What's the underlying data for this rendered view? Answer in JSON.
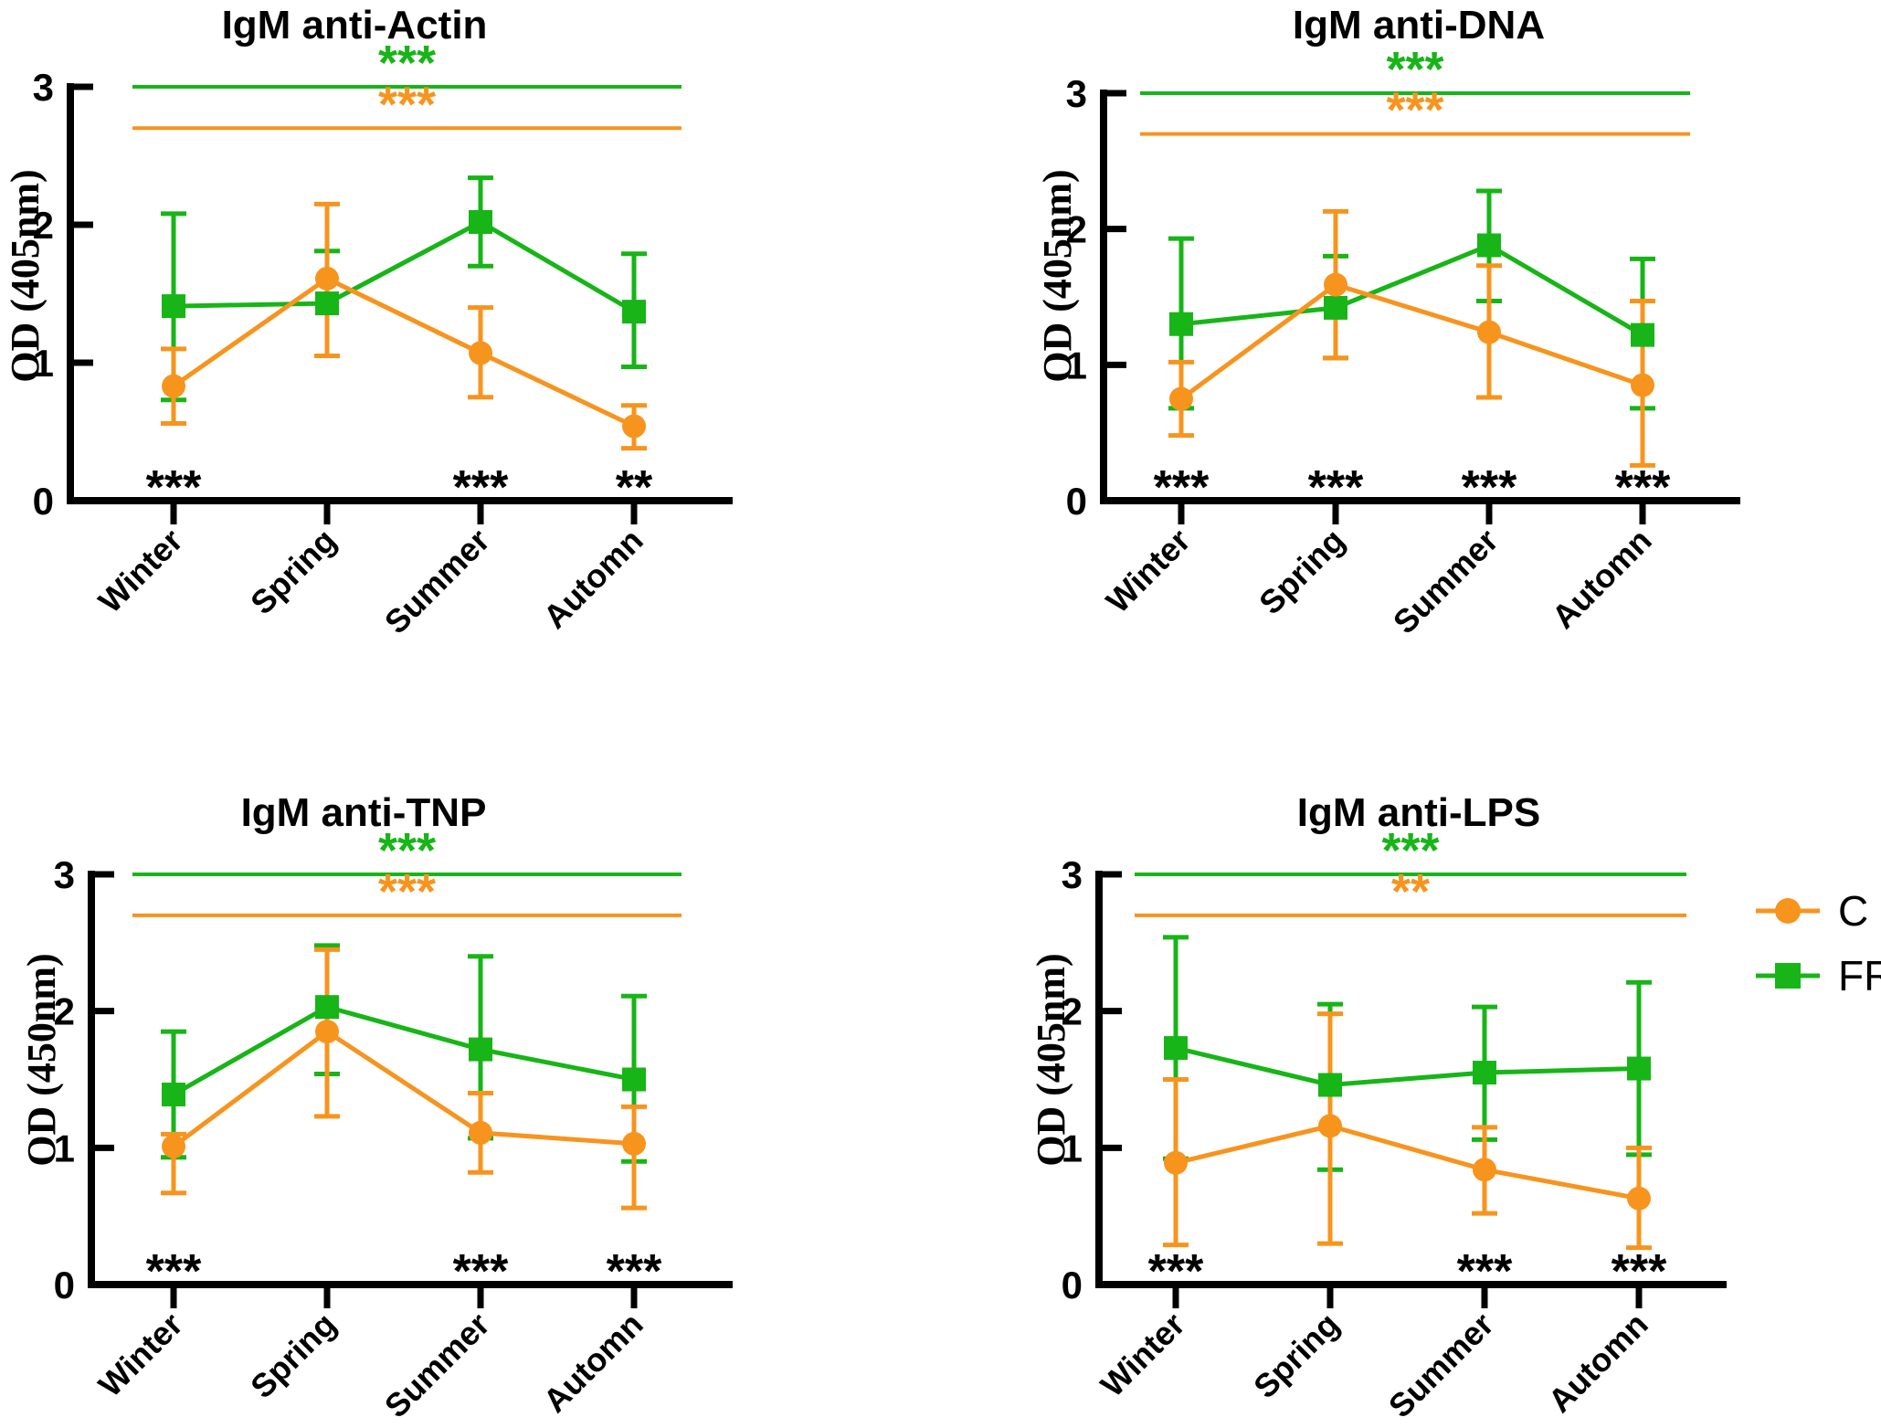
{
  "figure": {
    "background": "#ffffff",
    "description_colors": {
      "c_orange": "#F7941E",
      "fr_green": "#17B517",
      "axis_black": "#000000"
    }
  },
  "legend": {
    "items": [
      {
        "label": "C",
        "marker": "circle",
        "color": "#F7941E"
      },
      {
        "label": "FR",
        "marker": "square",
        "color": "#17B517"
      }
    ]
  },
  "chart_data": [
    {
      "type": "line",
      "title": "IgM anti-Actin",
      "ylabel": "OD (405nm)",
      "xlabel": "",
      "categories": [
        "Winter",
        "Spring",
        "Summer",
        "Automn"
      ],
      "ylim": [
        0,
        3
      ],
      "yticks": [
        0,
        1,
        2,
        3
      ],
      "grid": false,
      "legend_position": "none",
      "series": [
        {
          "name": "C",
          "color": "#F7941E",
          "marker": "circle",
          "values": [
            0.83,
            1.61,
            1.07,
            0.54
          ],
          "err_low": [
            0.56,
            1.05,
            0.75,
            0.38
          ],
          "err_high": [
            1.1,
            2.15,
            1.4,
            0.69
          ]
        },
        {
          "name": "FR",
          "color": "#17B517",
          "marker": "square",
          "values": [
            1.41,
            1.43,
            2.02,
            1.37
          ],
          "err_low": [
            0.73,
            1.05,
            1.7,
            0.97
          ],
          "err_high": [
            2.08,
            1.81,
            2.34,
            1.79
          ]
        }
      ],
      "significance": {
        "top_lines": [
          {
            "series": "FR",
            "color": "#17B517",
            "y": 3.0,
            "label": "***"
          },
          {
            "series": "C",
            "color": "#F7941E",
            "y": 2.7,
            "label": "***"
          }
        ],
        "x_axis_labels": [
          "***",
          "",
          "***",
          "**"
        ]
      }
    },
    {
      "type": "line",
      "title": "IgM anti-DNA",
      "ylabel": "OD (405nm)",
      "xlabel": "",
      "categories": [
        "Winter",
        "Spring",
        "Summer",
        "Automn"
      ],
      "ylim": [
        0,
        3
      ],
      "yticks": [
        0,
        1,
        2,
        3
      ],
      "grid": false,
      "legend_position": "none",
      "series": [
        {
          "name": "C",
          "color": "#F7941E",
          "marker": "circle",
          "values": [
            0.75,
            1.59,
            1.24,
            0.85
          ],
          "err_low": [
            0.48,
            1.05,
            0.76,
            0.26
          ],
          "err_high": [
            1.02,
            2.13,
            1.73,
            1.47
          ]
        },
        {
          "name": "FR",
          "color": "#17B517",
          "marker": "square",
          "values": [
            1.3,
            1.42,
            1.88,
            1.22
          ],
          "err_low": [
            0.68,
            1.05,
            1.47,
            0.68
          ],
          "err_high": [
            1.93,
            1.8,
            2.28,
            1.78
          ]
        }
      ],
      "significance": {
        "top_lines": [
          {
            "series": "FR",
            "color": "#17B517",
            "y": 3.0,
            "label": "***"
          },
          {
            "series": "C",
            "color": "#F7941E",
            "y": 2.7,
            "label": "***"
          }
        ],
        "x_axis_labels": [
          "***",
          "***",
          "***",
          "***"
        ]
      }
    },
    {
      "type": "line",
      "title": "IgM anti-TNP",
      "ylabel": "OD (450nm)",
      "xlabel": "",
      "categories": [
        "Winter",
        "Spring",
        "Summer",
        "Automn"
      ],
      "ylim": [
        0,
        3
      ],
      "yticks": [
        0,
        1,
        2,
        3
      ],
      "grid": false,
      "legend_position": "none",
      "series": [
        {
          "name": "C",
          "color": "#F7941E",
          "marker": "circle",
          "values": [
            1.01,
            1.85,
            1.11,
            1.03
          ],
          "err_low": [
            0.67,
            1.23,
            0.82,
            0.56
          ],
          "err_high": [
            1.1,
            2.45,
            1.4,
            1.3
          ]
        },
        {
          "name": "FR",
          "color": "#17B517",
          "marker": "square",
          "values": [
            1.39,
            2.03,
            1.72,
            1.5
          ],
          "err_low": [
            0.93,
            1.54,
            1.07,
            0.9
          ],
          "err_high": [
            1.85,
            2.48,
            2.4,
            2.11
          ]
        }
      ],
      "significance": {
        "top_lines": [
          {
            "series": "FR",
            "color": "#17B517",
            "y": 3.0,
            "label": "***"
          },
          {
            "series": "C",
            "color": "#F7941E",
            "y": 2.7,
            "label": "***"
          }
        ],
        "x_axis_labels": [
          "***",
          "",
          "***",
          "***"
        ]
      }
    },
    {
      "type": "line",
      "title": "IgM anti-LPS",
      "ylabel": "OD (405nm)",
      "xlabel": "",
      "categories": [
        "Winter",
        "Spring",
        "Summer",
        "Automn"
      ],
      "ylim": [
        0,
        3
      ],
      "yticks": [
        0,
        1,
        2,
        3
      ],
      "grid": false,
      "legend_position": "right-of-plot",
      "series": [
        {
          "name": "C",
          "color": "#F7941E",
          "marker": "circle",
          "values": [
            0.89,
            1.16,
            0.84,
            0.63
          ],
          "err_low": [
            0.29,
            0.3,
            0.52,
            0.27
          ],
          "err_high": [
            1.5,
            1.98,
            1.15,
            1.0
          ]
        },
        {
          "name": "FR",
          "color": "#17B517",
          "marker": "square",
          "values": [
            1.73,
            1.46,
            1.55,
            1.58
          ],
          "err_low": [
            0.92,
            0.84,
            1.06,
            0.95
          ],
          "err_high": [
            2.54,
            2.05,
            2.03,
            2.21
          ]
        }
      ],
      "significance": {
        "top_lines": [
          {
            "series": "FR",
            "color": "#17B517",
            "y": 3.0,
            "label": "***"
          },
          {
            "series": "C",
            "color": "#F7941E",
            "y": 2.7,
            "label": "**"
          }
        ],
        "x_axis_labels": [
          "***",
          "",
          "***",
          "***"
        ]
      }
    }
  ]
}
